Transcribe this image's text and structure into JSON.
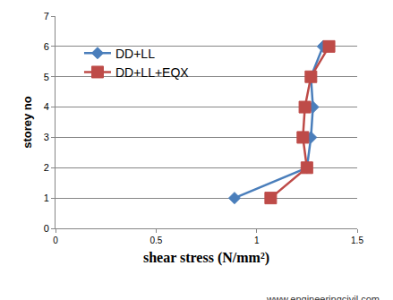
{
  "chart_data": {
    "type": "line",
    "orientation": "horizontal",
    "x_label": "shear stress (N/mm²)",
    "y_label": "storey no",
    "y": [
      1,
      2,
      3,
      4,
      5,
      6
    ],
    "series": [
      {
        "name": "DD+LL",
        "color": "#4a7ebb",
        "marker": "diamond",
        "values": [
          0.89,
          1.25,
          1.27,
          1.28,
          1.27,
          1.33
        ]
      },
      {
        "name": "DD+LL+EQX",
        "color": "#be4b48",
        "marker": "square",
        "values": [
          1.07,
          1.25,
          1.23,
          1.24,
          1.27,
          1.36
        ]
      }
    ],
    "xlim": [
      0,
      1.5
    ],
    "xticks": [
      0,
      0.5,
      1,
      1.5
    ],
    "ylim": [
      0,
      7
    ],
    "yticks": [
      0,
      1,
      2,
      3,
      4,
      5,
      6,
      7
    ],
    "grid": "y",
    "legend": "left",
    "annotations": [
      "www.engineeringcivil.com"
    ]
  }
}
